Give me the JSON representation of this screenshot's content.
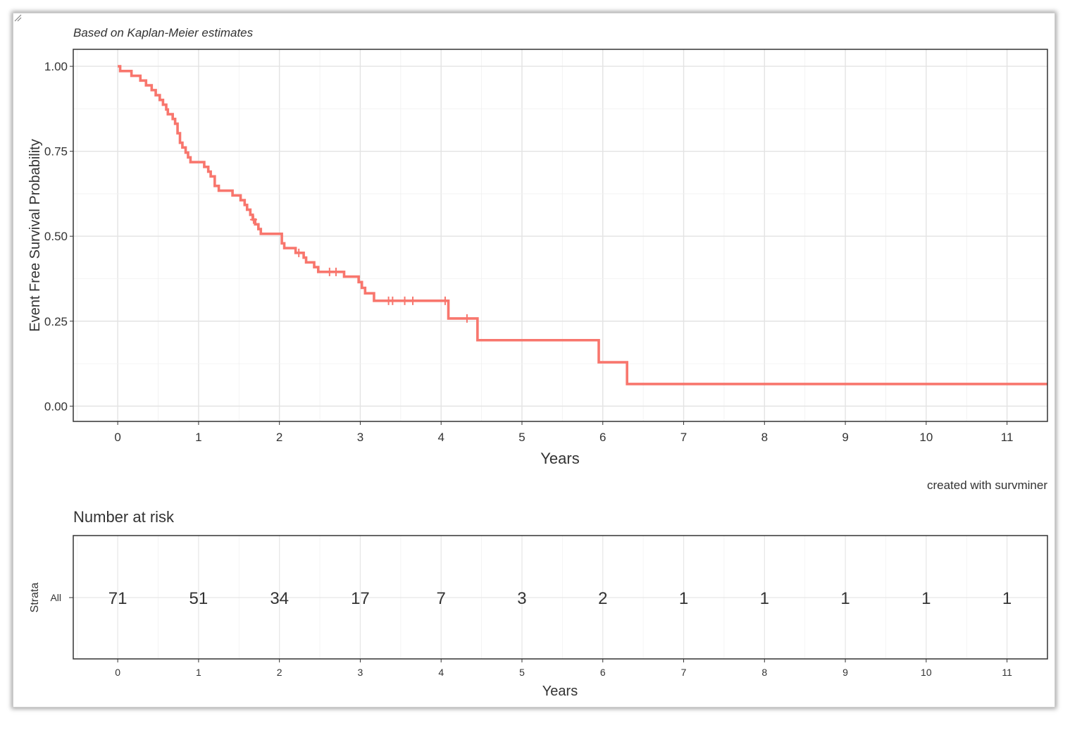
{
  "chart_data": [
    {
      "type": "line",
      "subtitle": "Based on Kaplan-Meier estimates",
      "xlabel": "Years",
      "ylabel": "Event Free Survival Probability",
      "xlim": [
        -0.55,
        11.5
      ],
      "ylim": [
        -0.045,
        1.05
      ],
      "xticks": [
        0,
        1,
        2,
        3,
        4,
        5,
        6,
        7,
        8,
        9,
        10,
        11
      ],
      "yticks": [
        0,
        0.25,
        0.5,
        0.75,
        1.0
      ],
      "ytick_labels": [
        "0.00",
        "0.25",
        "0.50",
        "0.75",
        "1.00"
      ],
      "grid": true,
      "line_color": "#F8766D",
      "series": [
        {
          "steps": [
            [
              0,
              1.0
            ],
            [
              0.03,
              0.986
            ],
            [
              0.17,
              0.972
            ],
            [
              0.28,
              0.958
            ],
            [
              0.35,
              0.944
            ],
            [
              0.42,
              0.93
            ],
            [
              0.47,
              0.915
            ],
            [
              0.52,
              0.901
            ],
            [
              0.56,
              0.887
            ],
            [
              0.6,
              0.873
            ],
            [
              0.62,
              0.859
            ],
            [
              0.68,
              0.845
            ],
            [
              0.71,
              0.831
            ],
            [
              0.74,
              0.803
            ],
            [
              0.77,
              0.775
            ],
            [
              0.8,
              0.761
            ],
            [
              0.84,
              0.746
            ],
            [
              0.87,
              0.732
            ],
            [
              0.9,
              0.718
            ],
            [
              1.07,
              0.704
            ],
            [
              1.12,
              0.69
            ],
            [
              1.15,
              0.676
            ],
            [
              1.2,
              0.648
            ],
            [
              1.25,
              0.634
            ],
            [
              1.42,
              0.62
            ],
            [
              1.52,
              0.606
            ],
            [
              1.57,
              0.592
            ],
            [
              1.6,
              0.578
            ],
            [
              1.64,
              0.563
            ],
            [
              1.67,
              0.549
            ],
            [
              1.7,
              0.535
            ],
            [
              1.74,
              0.521
            ],
            [
              1.77,
              0.507
            ],
            [
              2.03,
              0.479
            ],
            [
              2.06,
              0.465
            ],
            [
              2.2,
              0.451
            ],
            [
              2.3,
              0.437
            ],
            [
              2.33,
              0.423
            ],
            [
              2.43,
              0.409
            ],
            [
              2.48,
              0.395
            ],
            [
              2.8,
              0.381
            ],
            [
              2.98,
              0.365
            ],
            [
              3.02,
              0.348
            ],
            [
              3.06,
              0.332
            ],
            [
              3.17,
              0.31
            ],
            [
              4.09,
              0.258
            ],
            [
              4.45,
              0.194
            ],
            [
              5.95,
              0.129
            ],
            [
              6.3,
              0.065
            ],
            [
              11.5,
              0.065
            ]
          ],
          "censors": [
            [
              1.68,
              0.549
            ],
            [
              2.24,
              0.451
            ],
            [
              2.62,
              0.395
            ],
            [
              2.7,
              0.395
            ],
            [
              3.35,
              0.31
            ],
            [
              3.4,
              0.31
            ],
            [
              3.55,
              0.31
            ],
            [
              3.65,
              0.31
            ],
            [
              4.05,
              0.31
            ],
            [
              4.32,
              0.258
            ]
          ]
        }
      ],
      "caption": "created with survminer"
    },
    {
      "type": "table",
      "title": "Number at risk",
      "xlabel": "Years",
      "ylabel": "Strata",
      "strata": [
        "All"
      ],
      "times": [
        0,
        1,
        2,
        3,
        4,
        5,
        6,
        7,
        8,
        9,
        10,
        11
      ],
      "values": [
        71,
        51,
        34,
        17,
        7,
        3,
        2,
        1,
        1,
        1,
        1,
        1
      ],
      "strata_color": "#F8766D"
    }
  ]
}
